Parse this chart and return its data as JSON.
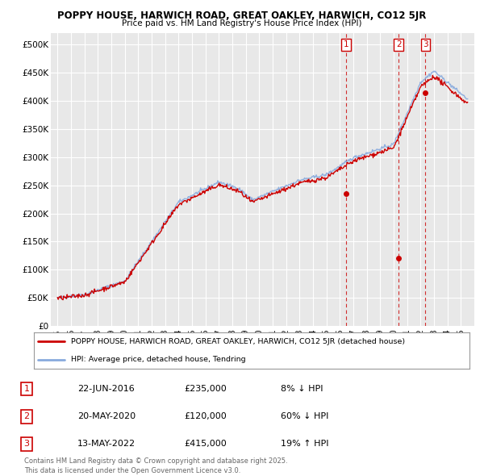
{
  "title1": "POPPY HOUSE, HARWICH ROAD, GREAT OAKLEY, HARWICH, CO12 5JR",
  "title2": "Price paid vs. HM Land Registry's House Price Index (HPI)",
  "background_color": "#ffffff",
  "plot_bg_color": "#e8e8e8",
  "red_color": "#cc0000",
  "blue_color": "#88aadd",
  "grid_color": "#ffffff",
  "ylim": [
    0,
    520000
  ],
  "yticks": [
    0,
    50000,
    100000,
    150000,
    200000,
    250000,
    300000,
    350000,
    400000,
    450000,
    500000
  ],
  "ytick_labels": [
    "£0",
    "£50K",
    "£100K",
    "£150K",
    "£200K",
    "£250K",
    "£300K",
    "£350K",
    "£400K",
    "£450K",
    "£500K"
  ],
  "sale_dates": [
    2016.47,
    2020.38,
    2022.37
  ],
  "sale_prices": [
    235000,
    120000,
    415000
  ],
  "sale_labels": [
    "1",
    "2",
    "3"
  ],
  "legend_line1": "POPPY HOUSE, HARWICH ROAD, GREAT OAKLEY, HARWICH, CO12 5JR (detached house)",
  "legend_line2": "HPI: Average price, detached house, Tendring",
  "table_data": [
    [
      "1",
      "22-JUN-2016",
      "£235,000",
      "8% ↓ HPI"
    ],
    [
      "2",
      "20-MAY-2020",
      "£120,000",
      "60% ↓ HPI"
    ],
    [
      "3",
      "13-MAY-2022",
      "£415,000",
      "19% ↑ HPI"
    ]
  ],
  "footer": "Contains HM Land Registry data © Crown copyright and database right 2025.\nThis data is licensed under the Open Government Licence v3.0.",
  "xmin": 1994.5,
  "xmax": 2026.0
}
